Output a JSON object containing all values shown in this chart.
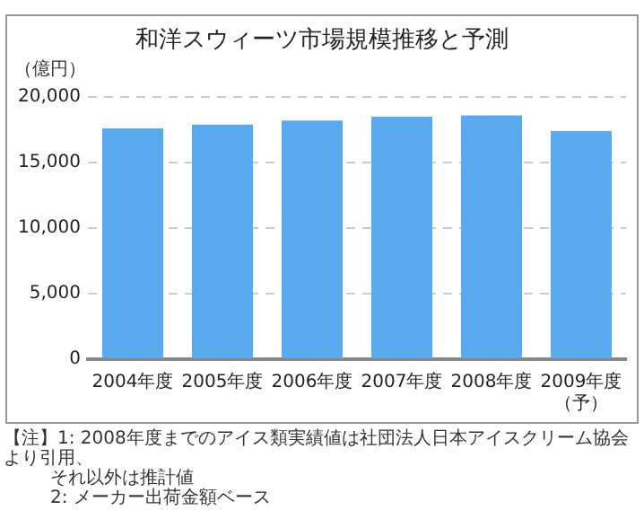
{
  "chart_data": {
    "type": "bar",
    "title": "和洋スウィーツ市場規模推移と予測",
    "ylabel": "（億円）",
    "categories": [
      "2004年度",
      "2005年度",
      "2006年度",
      "2007年度",
      "2008年度",
      "2009年度（予）"
    ],
    "values": [
      17600,
      17900,
      18200,
      18500,
      18600,
      17400
    ],
    "color": "#5aaaf0",
    "ylim": [
      0,
      20000
    ],
    "yticks": [
      0,
      {
        "value": 5000,
        "label": "5,000"
      },
      {
        "value": 10000,
        "label": "10,000"
      },
      {
        "value": 15000,
        "label": "15,000"
      },
      {
        "value": 20000,
        "label": "20,000"
      }
    ],
    "grid": "y",
    "annotations": [
      "【注】1: 2008年度までのアイス類実績値は社団法人日本アイスクリーム協会より引用、",
      "それ以外は推計値",
      "2: メーカー出荷金額ベース"
    ]
  }
}
